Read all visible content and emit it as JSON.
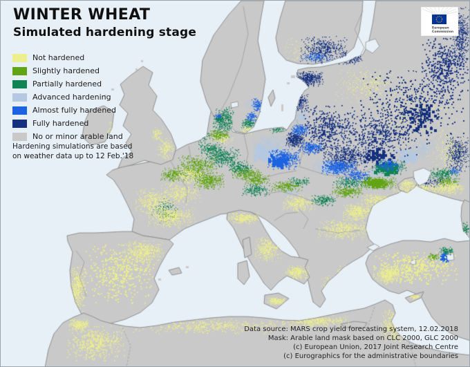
{
  "title": "WINTER WHEAT",
  "subtitle": "Simulated hardening stage",
  "legend": {
    "items": [
      {
        "key": "not_hardened",
        "label": "Not hardened",
        "color": "#edef8d"
      },
      {
        "key": "slightly_hardened",
        "label": "Slightly hardened",
        "color": "#61a414"
      },
      {
        "key": "partially_hardened",
        "label": "Partially hardened",
        "color": "#108455"
      },
      {
        "key": "advanced_hardening",
        "label": "Advanced hardening",
        "color": "#b4c9e1"
      },
      {
        "key": "almost_fully_hardened",
        "label": "Almost fully hardened",
        "color": "#1c63e2"
      },
      {
        "key": "fully_hardened",
        "label": "Fully hardened",
        "color": "#14307e"
      },
      {
        "key": "no_arable_land",
        "label": "No or minor arable land",
        "color": "#c9c9c9"
      }
    ]
  },
  "note_lines": [
    "Hardening simulations are based",
    "on weather data up to 12 Feb.'18"
  ],
  "credits_lines": [
    "Data source: MARS crop yield forecasting system, 12.02.2018",
    "Mask: Arable land mask based on CLC 2000, GLC 2000",
    "(c) European Union, 2017 Joint Research Centre",
    "(c) Eurographics for the administrative boundaries"
  ],
  "logo": {
    "org_line1": "European",
    "org_line2": "Commission"
  },
  "map_colors": {
    "sea": "#e7f0f7",
    "land": "#c9c9c9",
    "coast": "#8f8f8f",
    "border": "#a2a2a2"
  }
}
